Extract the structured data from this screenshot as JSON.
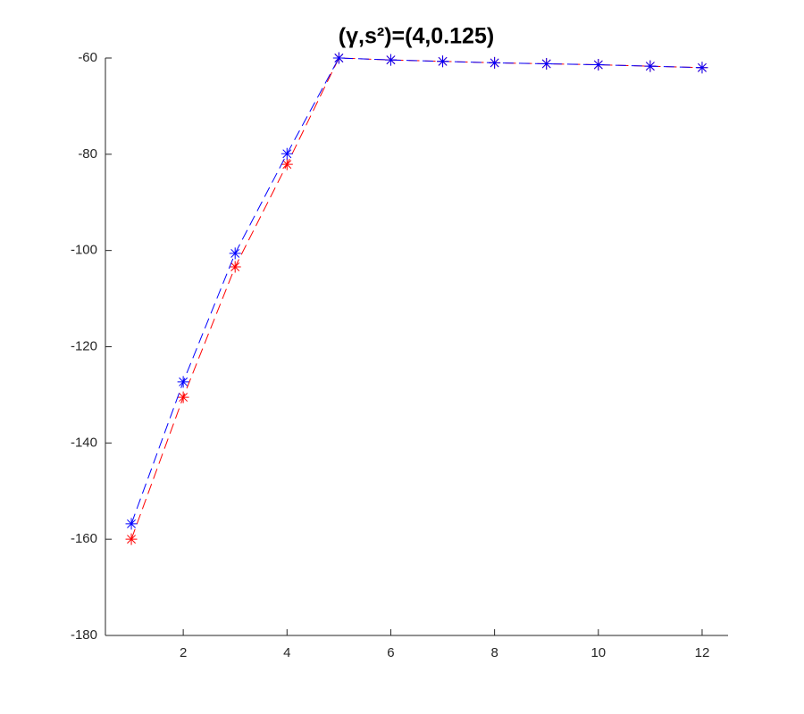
{
  "chart_data": {
    "type": "line",
    "title": "(γ,s²)=(4,0.125)",
    "x": [
      1,
      2,
      3,
      4,
      5,
      6,
      7,
      8,
      9,
      10,
      11,
      12
    ],
    "series": [
      {
        "color": "#ff0000",
        "values": [
          -160,
          -130.5,
          -103.4,
          -82.1,
          -60,
          -60.4,
          -60.7,
          -61,
          -61.2,
          -61.4,
          -61.7,
          -62
        ]
      },
      {
        "color": "#0000ff",
        "values": [
          -156.8,
          -127.3,
          -100.6,
          -79.9,
          -60,
          -60.4,
          -60.7,
          -61,
          -61.2,
          -61.4,
          -61.7,
          -62
        ]
      }
    ],
    "xlim": [
      0.5,
      12.5
    ],
    "xticks": [
      2,
      4,
      6,
      8,
      10,
      12
    ],
    "ylim": [
      -180,
      -60
    ],
    "yticks": [
      -180,
      -160,
      -140,
      -120,
      -100,
      -80,
      -60
    ],
    "grid": false,
    "marker": "asterisk",
    "line_style": "dashed"
  }
}
